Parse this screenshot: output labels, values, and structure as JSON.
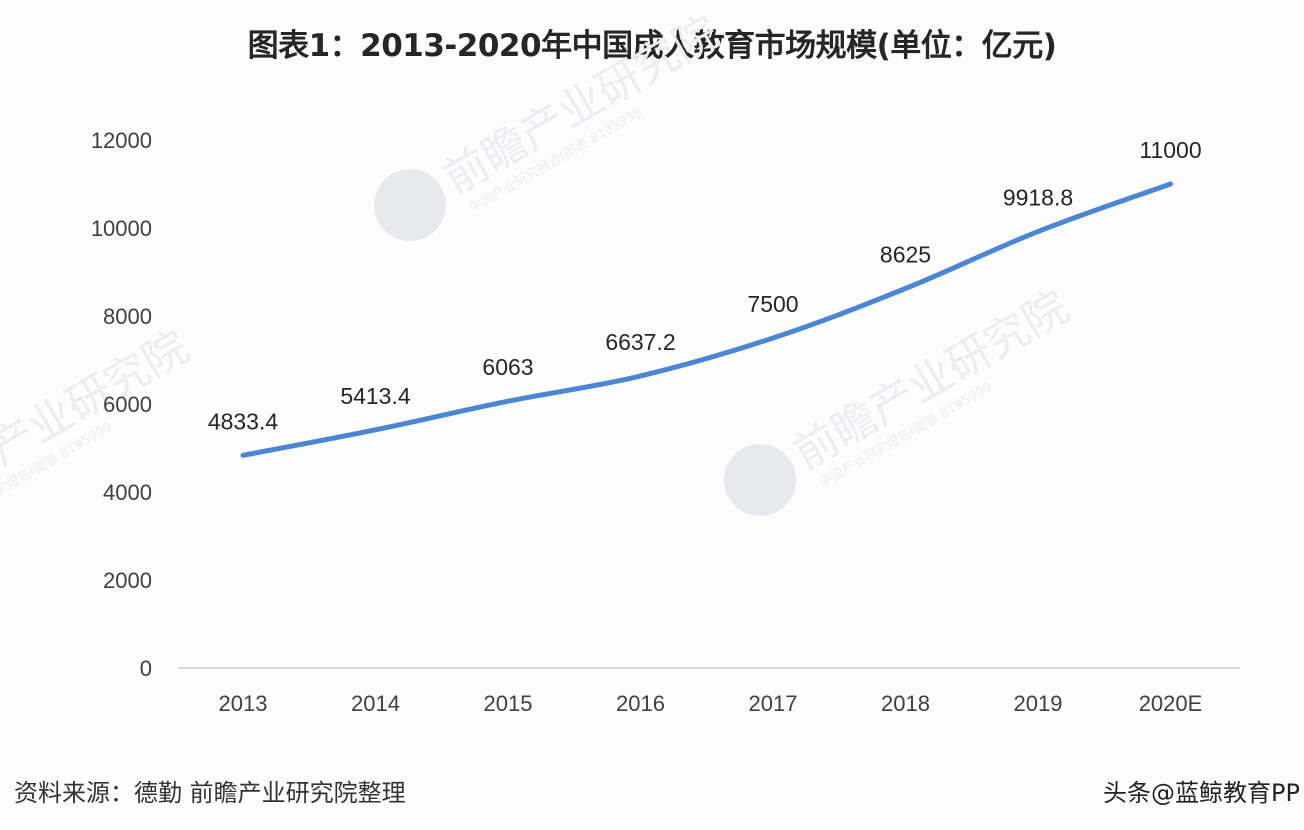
{
  "title": "图表1：2013-2020年中国成人教育市场规模(单位：亿元)",
  "source": "资料来源：德勤 前瞻产业研究院整理",
  "credit": "头条@蓝鲸教育PP",
  "watermark": {
    "main": "前瞻产业研究院",
    "sub": "中国产业研究报告(图表 8195999"
  },
  "colors": {
    "line": "#4A86D4",
    "axis": "#d9d9d9",
    "text": "#404040"
  },
  "chart_data": {
    "type": "line",
    "title": "图表1：2013-2020年中国成人教育市场规模(单位：亿元)",
    "xlabel": "",
    "ylabel": "",
    "categories": [
      "2013",
      "2014",
      "2015",
      "2016",
      "2017",
      "2018",
      "2019",
      "2020E"
    ],
    "series": [
      {
        "name": "中国成人教育市场规模",
        "values": [
          4833.4,
          5413.4,
          6063,
          6637.2,
          7500,
          8625,
          9918.8,
          11000
        ],
        "labels": [
          "4833.4",
          "5413.4",
          "6063",
          "6637.2",
          "7500",
          "8625",
          "9918.8",
          "11000"
        ]
      }
    ],
    "yticks": [
      "0",
      "2000",
      "4000",
      "6000",
      "8000",
      "10000",
      "12000"
    ],
    "ylim": [
      0,
      12000
    ],
    "grid": false,
    "smooth": true,
    "legend": "none",
    "data_labels": true
  }
}
